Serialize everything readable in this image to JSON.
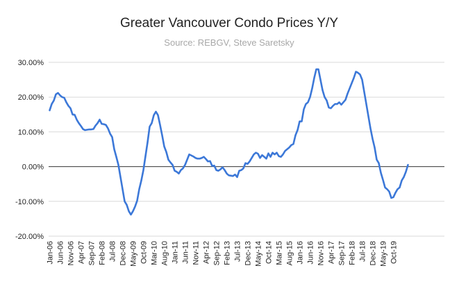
{
  "chart_data": {
    "type": "line",
    "title": "Greater Vancouver Condo Prices Y/Y",
    "subtitle": "Source: REBGV, Steve Saretsky",
    "xlabel": "",
    "ylabel": "",
    "ylim": [
      -20,
      30
    ],
    "y_ticks": [
      30,
      20,
      10,
      0,
      -10,
      -20
    ],
    "y_tick_labels": [
      "30.00%",
      "20.00%",
      "10.00%",
      "0.00%",
      "-10.00%",
      "-20.00%"
    ],
    "x_tick_labels": [
      "Jan-06",
      "Jun-06",
      "Nov-06",
      "Apr-07",
      "Sep-07",
      "Feb-08",
      "Jul-08",
      "Dec-08",
      "May-09",
      "Oct-09",
      "Mar-10",
      "Aug-10",
      "Jan-11",
      "Jun-11",
      "Nov-11",
      "Apr-12",
      "Sep-12",
      "Feb-13",
      "Jul-13",
      "Dec-13",
      "May-14",
      "Oct-14",
      "Mar-15",
      "Aug-15",
      "Jan-16",
      "Jun-16",
      "Nov-16",
      "Apr-17",
      "Sep-17",
      "Feb-18",
      "Jul-18",
      "Dec-18",
      "May-19",
      "Oct-19"
    ],
    "grid": "horizontal",
    "series_color": "#3c78d8",
    "series": [
      {
        "name": "",
        "start": "Jan-06",
        "frequency": "monthly",
        "values": [
          16.2,
          18.0,
          19.0,
          20.8,
          21.2,
          20.5,
          20.0,
          19.8,
          18.5,
          17.5,
          16.8,
          15.0,
          14.9,
          13.5,
          12.5,
          11.7,
          10.8,
          10.5,
          10.6,
          10.7,
          10.7,
          10.8,
          11.8,
          12.5,
          13.5,
          12.3,
          12.2,
          12.0,
          11.0,
          9.5,
          8.5,
          5.0,
          2.8,
          0.5,
          -3.0,
          -6.5,
          -10.0,
          -11.0,
          -12.8,
          -13.8,
          -12.8,
          -11.5,
          -9.8,
          -6.5,
          -4.0,
          -1.0,
          3.0,
          7.0,
          11.5,
          12.5,
          14.8,
          15.8,
          14.8,
          12.0,
          9.0,
          5.8,
          4.2,
          2.0,
          1.2,
          0.5,
          -1.2,
          -1.5,
          -2.0,
          -1.0,
          -0.5,
          0.5,
          2.0,
          3.5,
          3.2,
          2.9,
          2.5,
          2.3,
          2.3,
          2.5,
          2.8,
          2.2,
          1.5,
          1.6,
          0.2,
          0.3,
          -1.0,
          -1.2,
          -0.8,
          -0.2,
          -1.0,
          -2.0,
          -2.5,
          -2.6,
          -2.7,
          -2.3,
          -3.0,
          -1.2,
          -1.0,
          -0.5,
          1.0,
          0.8,
          1.5,
          2.5,
          3.5,
          4.0,
          3.7,
          2.5,
          3.3,
          2.8,
          2.3,
          3.8,
          2.8,
          4.0,
          3.5,
          4.0,
          3.0,
          2.8,
          3.5,
          4.5,
          5.0,
          5.5,
          6.2,
          6.5,
          9.0,
          10.5,
          13.0,
          13.0,
          16.5,
          18.0,
          18.5,
          20.0,
          22.5,
          25.5,
          28.0,
          28.0,
          25.0,
          22.0,
          20.0,
          19.0,
          17.0,
          16.8,
          17.5,
          18.0,
          18.0,
          18.5,
          17.8,
          18.5,
          19.2,
          21.0,
          22.5,
          24.0,
          25.5,
          27.3,
          27.0,
          26.5,
          25.0,
          21.5,
          18.0,
          14.5,
          11.0,
          8.0,
          5.5,
          2.0,
          1.0,
          -1.8,
          -3.8,
          -6.0,
          -6.5,
          -7.2,
          -9.0,
          -8.8,
          -7.5,
          -6.5,
          -6.0,
          -4.0,
          -3.0,
          -1.5,
          0.5
        ]
      }
    ]
  }
}
